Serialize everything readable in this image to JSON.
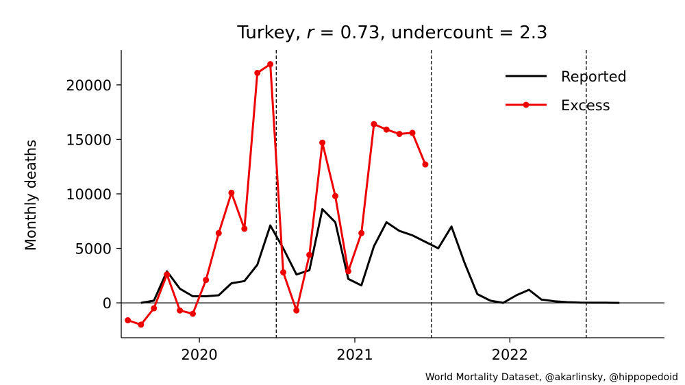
{
  "chart_data": {
    "type": "line",
    "title_prefix": "Turkey, ",
    "title_r_symbol": "r",
    "title_r_value": " = 0.73, undercount = 2.3",
    "ylabel": "Monthly deaths",
    "xlabel": "",
    "xlim": [
      "2019-07-01",
      "2022-12-31"
    ],
    "ylim": [
      -3200,
      23200
    ],
    "y_ticks": [
      0,
      5000,
      10000,
      15000,
      20000
    ],
    "x_ticks": [
      {
        "label": "2020",
        "date": "2020-01-01"
      },
      {
        "label": "2021",
        "date": "2021-01-01"
      },
      {
        "label": "2022",
        "date": "2022-01-01"
      }
    ],
    "vertical_lines": [
      "2020-06-30",
      "2021-06-30",
      "2022-06-30"
    ],
    "zero_line": true,
    "grid": false,
    "legend_position": "top-right",
    "series": [
      {
        "name": "Reported",
        "color": "#000000",
        "marker": false,
        "points": [
          [
            "2019-08",
            0
          ],
          [
            "2019-09",
            200
          ],
          [
            "2019-10",
            2900
          ],
          [
            "2019-11",
            1300
          ],
          [
            "2019-12",
            600
          ],
          [
            "2020-01",
            600
          ],
          [
            "2020-02",
            700
          ],
          [
            "2020-03",
            1800
          ],
          [
            "2020-04",
            2000
          ],
          [
            "2020-05",
            3500
          ],
          [
            "2020-06",
            7100
          ],
          [
            "2020-07",
            5000
          ],
          [
            "2020-08",
            2600
          ],
          [
            "2020-09",
            3000
          ],
          [
            "2020-10",
            8600
          ],
          [
            "2020-11",
            7400
          ],
          [
            "2020-12",
            2200
          ],
          [
            "2021-01",
            1600
          ],
          [
            "2021-02",
            5200
          ],
          [
            "2021-03",
            7400
          ],
          [
            "2021-04",
            6600
          ],
          [
            "2021-05",
            6200
          ],
          [
            "2021-06",
            5600
          ],
          [
            "2021-07",
            5000
          ],
          [
            "2021-08",
            7000
          ],
          [
            "2021-09",
            3700
          ],
          [
            "2021-10",
            800
          ],
          [
            "2021-11",
            200
          ],
          [
            "2021-12",
            0
          ],
          [
            "2022-01",
            700
          ],
          [
            "2022-02",
            1200
          ],
          [
            "2022-03",
            300
          ],
          [
            "2022-04",
            150
          ],
          [
            "2022-05",
            60
          ],
          [
            "2022-06",
            20
          ],
          [
            "2022-07",
            10
          ],
          [
            "2022-08",
            10
          ],
          [
            "2022-09",
            0
          ]
        ]
      },
      {
        "name": "Excess",
        "color": "#ee0000",
        "marker": true,
        "points": [
          [
            "2019-07",
            -1600
          ],
          [
            "2019-08",
            -2000
          ],
          [
            "2019-09",
            -500
          ],
          [
            "2019-10",
            2600
          ],
          [
            "2019-11",
            -700
          ],
          [
            "2019-12",
            -1000
          ],
          [
            "2020-01",
            2100
          ],
          [
            "2020-02",
            6400
          ],
          [
            "2020-03",
            10100
          ],
          [
            "2020-04",
            6800
          ],
          [
            "2020-05",
            21100
          ],
          [
            "2020-06",
            21900
          ],
          [
            "2020-07",
            2800
          ],
          [
            "2020-08",
            -700
          ],
          [
            "2020-09",
            4400
          ],
          [
            "2020-10",
            14700
          ],
          [
            "2020-11",
            9800
          ],
          [
            "2020-12",
            2900
          ],
          [
            "2021-01",
            6400
          ],
          [
            "2021-02",
            16400
          ],
          [
            "2021-03",
            15900
          ],
          [
            "2021-04",
            15500
          ],
          [
            "2021-05",
            15600
          ],
          [
            "2021-06",
            12700
          ]
        ]
      }
    ]
  },
  "credit": "World Mortality Dataset, @akarlinsky, @hippopedoid"
}
